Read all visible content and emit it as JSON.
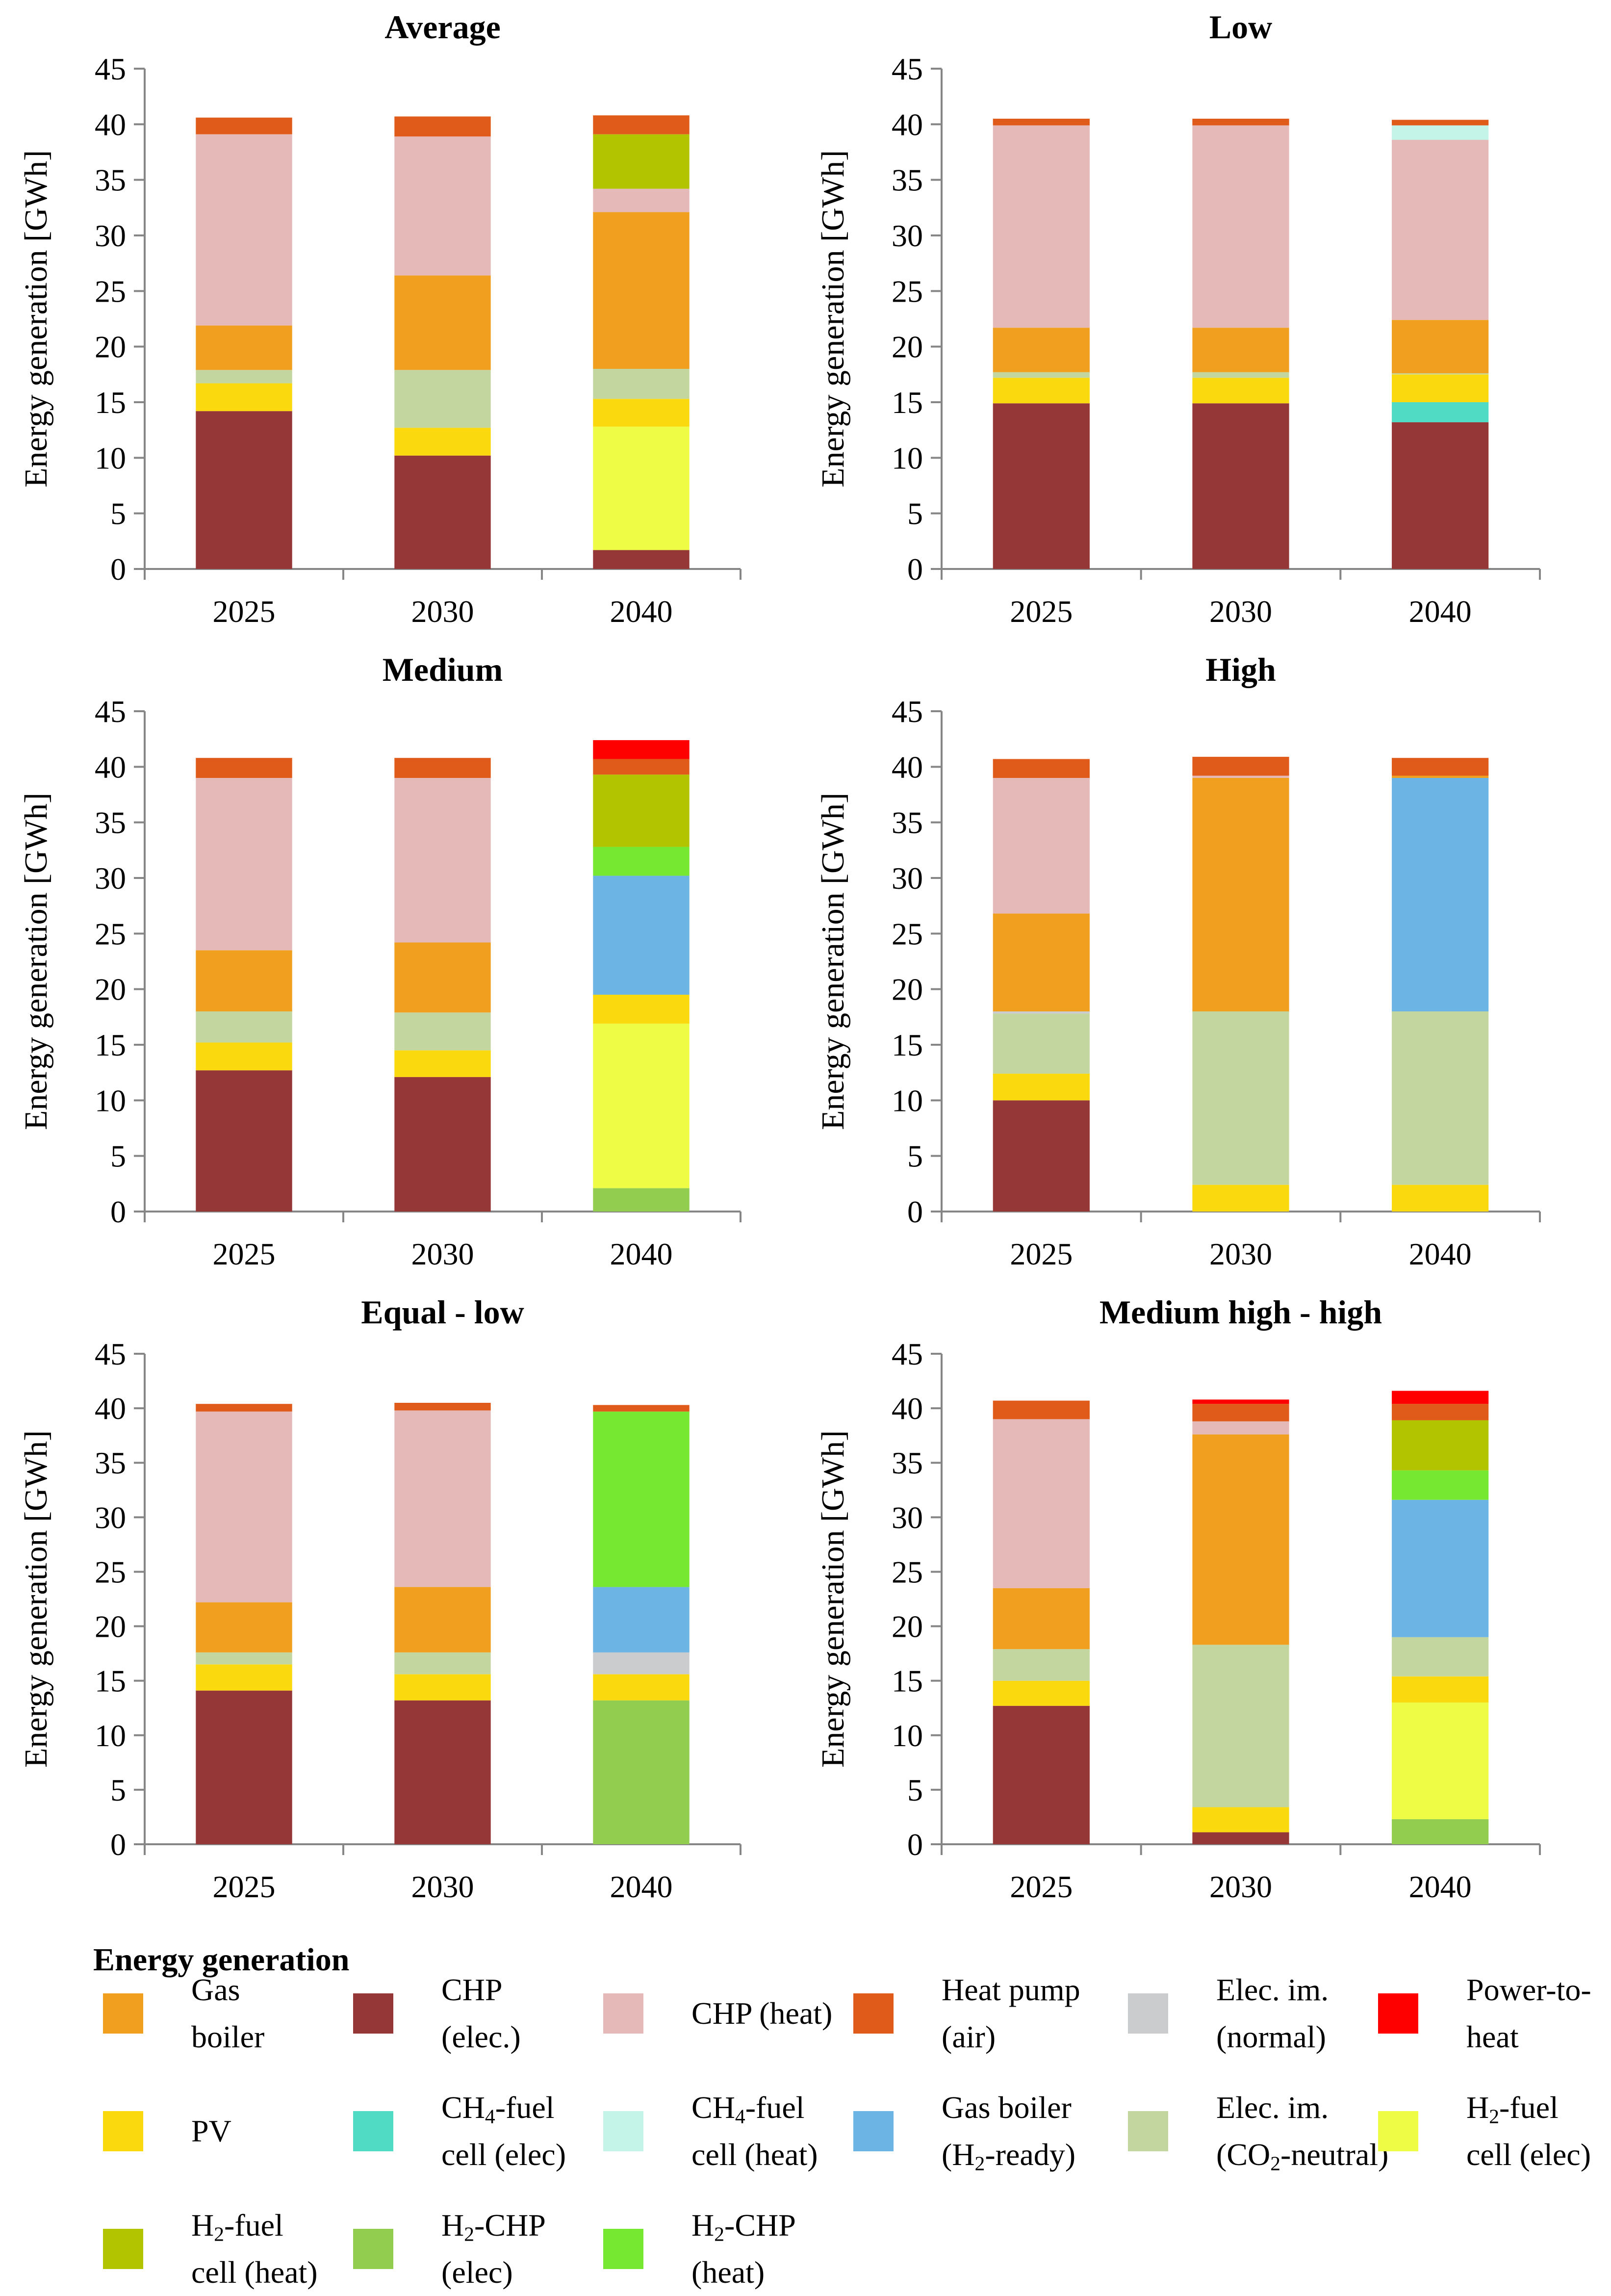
{
  "chart_data": [
    {
      "type": "bar",
      "stacked": true,
      "title": "Average",
      "categories": [
        "2025",
        "2030",
        "2040"
      ],
      "ylabel": "Energy generation [GWh]",
      "ylim": [
        0,
        45
      ],
      "yticks": [
        0,
        5,
        10,
        15,
        20,
        25,
        30,
        35,
        40,
        45
      ],
      "series": [
        {
          "name": "CHP (elec.)",
          "values": [
            14.2,
            10.2,
            1.7
          ]
        },
        {
          "name": "H2-fuel cell (elec)",
          "values": [
            0,
            0,
            11.1
          ]
        },
        {
          "name": "PV",
          "values": [
            2.5,
            2.5,
            2.5
          ]
        },
        {
          "name": "Elec. im. (CO2-neutral)",
          "values": [
            1.2,
            5.2,
            2.7
          ]
        },
        {
          "name": "Gas boiler",
          "values": [
            4.0,
            8.5,
            14.1
          ]
        },
        {
          "name": "CHP (heat)",
          "values": [
            17.2,
            12.5,
            2.1
          ]
        },
        {
          "name": "H2-fuel cell (heat)",
          "values": [
            0,
            0,
            4.9
          ]
        },
        {
          "name": "Heat pump (air)",
          "values": [
            1.5,
            1.8,
            1.7
          ]
        }
      ]
    },
    {
      "type": "bar",
      "stacked": true,
      "title": "Low",
      "categories": [
        "2025",
        "2030",
        "2040"
      ],
      "ylabel": "Energy generation [GWh]",
      "ylim": [
        0,
        45
      ],
      "yticks": [
        0,
        5,
        10,
        15,
        20,
        25,
        30,
        35,
        40,
        45
      ],
      "series": [
        {
          "name": "CHP (elec.)",
          "values": [
            14.9,
            14.9,
            13.2
          ]
        },
        {
          "name": "CH4-fuel cell (elec)",
          "values": [
            0,
            0,
            1.8
          ]
        },
        {
          "name": "PV",
          "values": [
            2.3,
            2.3,
            2.5
          ]
        },
        {
          "name": "Elec. im. (CO2-neutral)",
          "values": [
            0.5,
            0.5,
            0.1
          ]
        },
        {
          "name": "Gas boiler",
          "values": [
            4.0,
            4.0,
            4.8
          ]
        },
        {
          "name": "CHP (heat)",
          "values": [
            18.2,
            18.2,
            16.2
          ]
        },
        {
          "name": "CH4-fuel cell (heat)",
          "values": [
            0,
            0,
            1.3
          ]
        },
        {
          "name": "Heat pump (air)",
          "values": [
            0.6,
            0.6,
            0.5
          ]
        }
      ]
    },
    {
      "type": "bar",
      "stacked": true,
      "title": "Medium",
      "categories": [
        "2025",
        "2030",
        "2040"
      ],
      "ylabel": "Energy generation [GWh]",
      "ylim": [
        0,
        45
      ],
      "yticks": [
        0,
        5,
        10,
        15,
        20,
        25,
        30,
        35,
        40,
        45
      ],
      "series": [
        {
          "name": "CHP (elec.)",
          "values": [
            12.7,
            12.1,
            0
          ]
        },
        {
          "name": "H2-CHP (elec)",
          "values": [
            0,
            0,
            2.1
          ]
        },
        {
          "name": "H2-fuel cell (elec)",
          "values": [
            0,
            0,
            14.8
          ]
        },
        {
          "name": "PV",
          "values": [
            2.5,
            2.4,
            2.6
          ]
        },
        {
          "name": "Elec. im. (CO2-neutral)",
          "values": [
            2.8,
            3.4,
            0
          ]
        },
        {
          "name": "Gas boiler (H2-ready)",
          "values": [
            0,
            0,
            10.7
          ]
        },
        {
          "name": "Gas boiler",
          "values": [
            5.5,
            6.3,
            0
          ]
        },
        {
          "name": "H2-CHP (heat)",
          "values": [
            0,
            0,
            2.6
          ]
        },
        {
          "name": "CHP (heat)",
          "values": [
            15.5,
            14.8,
            0
          ]
        },
        {
          "name": "H2-fuel cell (heat)",
          "values": [
            0,
            0,
            6.5
          ]
        },
        {
          "name": "Heat pump (air)",
          "values": [
            1.8,
            1.8,
            1.4
          ]
        },
        {
          "name": "Power-to-heat",
          "values": [
            0,
            0,
            1.7
          ]
        }
      ]
    },
    {
      "type": "bar",
      "stacked": true,
      "title": "High",
      "categories": [
        "2025",
        "2030",
        "2040"
      ],
      "ylabel": "Energy generation [GWh]",
      "ylim": [
        0,
        45
      ],
      "yticks": [
        0,
        5,
        10,
        15,
        20,
        25,
        30,
        35,
        40,
        45
      ],
      "series": [
        {
          "name": "CHP (elec.)",
          "values": [
            10.0,
            0,
            0
          ]
        },
        {
          "name": "PV",
          "values": [
            2.4,
            2.4,
            2.4
          ]
        },
        {
          "name": "Elec. im. (CO2-neutral)",
          "values": [
            5.4,
            15.6,
            15.6
          ]
        },
        {
          "name": "Elec. im. (normal)",
          "values": [
            0.2,
            0,
            0
          ]
        },
        {
          "name": "Gas boiler (H2-ready)",
          "values": [
            0,
            0,
            21.0
          ]
        },
        {
          "name": "Gas boiler",
          "values": [
            8.8,
            21.0,
            0.2
          ]
        },
        {
          "name": "CHP (heat)",
          "values": [
            12.2,
            0.2,
            0
          ]
        },
        {
          "name": "Heat pump (air)",
          "values": [
            1.7,
            1.7,
            1.6
          ]
        }
      ]
    },
    {
      "type": "bar",
      "stacked": true,
      "title": "Equal - low",
      "categories": [
        "2025",
        "2030",
        "2040"
      ],
      "ylabel": "Energy generation [GWh]",
      "ylim": [
        0,
        45
      ],
      "yticks": [
        0,
        5,
        10,
        15,
        20,
        25,
        30,
        35,
        40,
        45
      ],
      "series": [
        {
          "name": "CHP (elec.)",
          "values": [
            14.1,
            13.2,
            0
          ]
        },
        {
          "name": "H2-CHP (elec)",
          "values": [
            0,
            0,
            13.2
          ]
        },
        {
          "name": "PV",
          "values": [
            2.4,
            2.4,
            2.4
          ]
        },
        {
          "name": "Elec. im. (CO2-neutral)",
          "values": [
            1.1,
            2.0,
            0
          ]
        },
        {
          "name": "Elec. im. (normal)",
          "values": [
            0,
            0,
            2.0
          ]
        },
        {
          "name": "Gas boiler (H2-ready)",
          "values": [
            0,
            0,
            6.0
          ]
        },
        {
          "name": "Gas boiler",
          "values": [
            4.6,
            6.0,
            0
          ]
        },
        {
          "name": "H2-CHP (heat)",
          "values": [
            0,
            0,
            16.1
          ]
        },
        {
          "name": "CHP (heat)",
          "values": [
            17.5,
            16.2,
            0
          ]
        },
        {
          "name": "Heat pump (air)",
          "values": [
            0.7,
            0.7,
            0.6
          ]
        }
      ]
    },
    {
      "type": "bar",
      "stacked": true,
      "title": "Medium high - high",
      "categories": [
        "2025",
        "2030",
        "2040"
      ],
      "ylabel": "Energy generation [GWh]",
      "ylim": [
        0,
        45
      ],
      "yticks": [
        0,
        5,
        10,
        15,
        20,
        25,
        30,
        35,
        40,
        45
      ],
      "series": [
        {
          "name": "CHP (elec.)",
          "values": [
            12.7,
            1.1,
            0
          ]
        },
        {
          "name": "H2-CHP (elec)",
          "values": [
            0,
            0,
            2.3
          ]
        },
        {
          "name": "H2-fuel cell (elec)",
          "values": [
            0,
            0,
            10.7
          ]
        },
        {
          "name": "PV",
          "values": [
            2.3,
            2.3,
            2.4
          ]
        },
        {
          "name": "Elec. im. (CO2-neutral)",
          "values": [
            2.9,
            14.9,
            3.6
          ]
        },
        {
          "name": "Gas boiler (H2-ready)",
          "values": [
            0,
            0,
            12.6
          ]
        },
        {
          "name": "Gas boiler",
          "values": [
            5.6,
            19.3,
            0
          ]
        },
        {
          "name": "H2-CHP (heat)",
          "values": [
            0,
            0,
            2.7
          ]
        },
        {
          "name": "CHP (heat)",
          "values": [
            15.5,
            1.2,
            0
          ]
        },
        {
          "name": "H2-fuel cell (heat)",
          "values": [
            0,
            0,
            4.6
          ]
        },
        {
          "name": "Heat pump (air)",
          "values": [
            1.7,
            1.6,
            1.5
          ]
        },
        {
          "name": "Power-to-heat",
          "values": [
            0,
            0.4,
            1.2
          ]
        }
      ]
    }
  ],
  "colors": {
    "Gas boiler": "#f0a01e",
    "CHP (elec.)": "#963737",
    "CHP (heat)": "#e6b9b9",
    "Heat pump (air)": "#e05a1a",
    "Elec. im. (normal)": "#cbcccd",
    "Power-to-heat": "#ff0000",
    "PV": "#fbd90f",
    "CH4-fuel cell (elec)": "#50dcc4",
    "CH4-fuel cell (heat)": "#c4f4e8",
    "Gas boiler (H2-ready)": "#6cb4e4",
    "Elec. im. (CO2-neutral)": "#c4d6a0",
    "H2-fuel cell (elec)": "#eefc46",
    "H2-fuel cell (heat)": "#b2c400",
    "H2-CHP (elec)": "#92cd50",
    "H2-CHP (heat)": "#76e832",
    "axis": "#868686"
  },
  "legend": {
    "title": "Energy generation",
    "items": [
      {
        "key": "Gas boiler",
        "line1": "Gas",
        "line2": "boiler"
      },
      {
        "key": "CHP (elec.)",
        "line1": "CHP",
        "line2": "(elec.)"
      },
      {
        "key": "CHP (heat)",
        "line1": "CHP (heat)",
        "line2": ""
      },
      {
        "key": "Heat pump (air)",
        "line1": "Heat pump",
        "line2": "(air)"
      },
      {
        "key": "Elec. im. (normal)",
        "line1": "Elec. im.",
        "line2": "(normal)"
      },
      {
        "key": "Power-to-heat",
        "line1": "Power-to-",
        "line2": "heat"
      },
      {
        "key": "PV",
        "line1": "PV",
        "line2": ""
      },
      {
        "key": "CH4-fuel cell (elec)",
        "line1": "CH4-fuel",
        "line2": "cell (elec)"
      },
      {
        "key": "CH4-fuel cell (heat)",
        "line1": "CH4-fuel",
        "line2": "cell (heat)"
      },
      {
        "key": "Gas boiler (H2-ready)",
        "line1": "Gas boiler",
        "line2": "(H2-ready)"
      },
      {
        "key": "Elec. im. (CO2-neutral)",
        "line1": "Elec. im.",
        "line2": "(CO2-neutral)"
      },
      {
        "key": "H2-fuel cell (elec)",
        "line1": "H2-fuel",
        "line2": "cell (elec)"
      },
      {
        "key": "H2-fuel cell (heat)",
        "line1": "H2-fuel",
        "line2": "cell (heat)"
      },
      {
        "key": "H2-CHP (elec)",
        "line1": "H2-CHP",
        "line2": "(elec)"
      },
      {
        "key": "H2-CHP (heat)",
        "line1": "H2-CHP",
        "line2": "(heat)"
      }
    ]
  }
}
